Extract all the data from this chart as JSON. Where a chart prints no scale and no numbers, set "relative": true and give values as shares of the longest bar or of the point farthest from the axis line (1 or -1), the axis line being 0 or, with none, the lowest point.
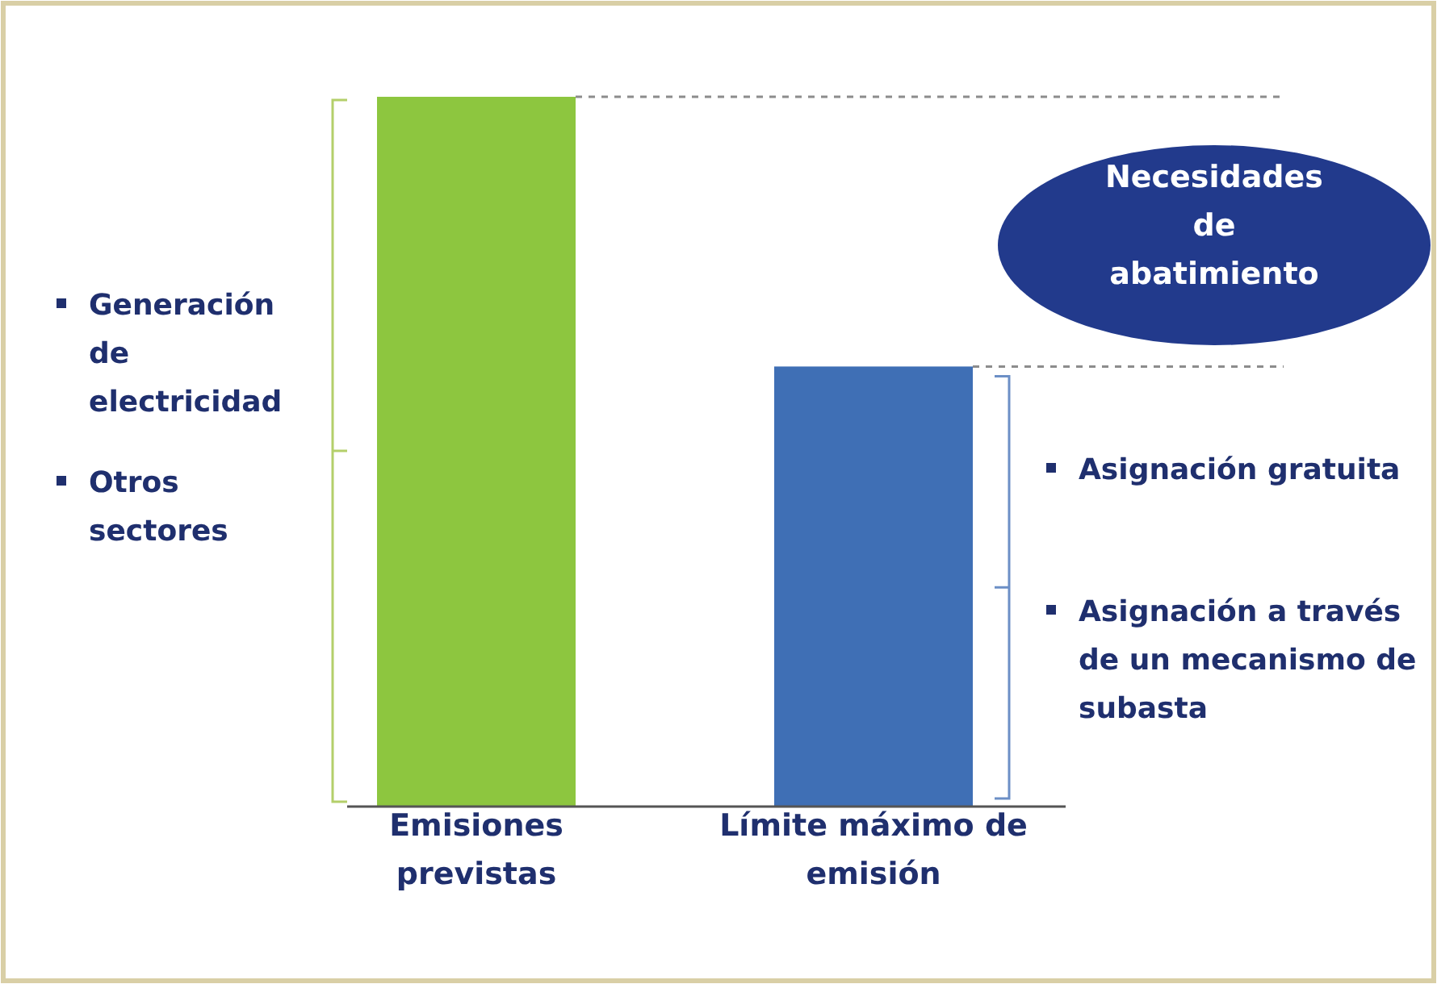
{
  "chart_data": {
    "type": "bar",
    "relative": true,
    "categories": [
      "Emisiones previstas",
      "Límite máximo de emisión"
    ],
    "values": [
      1,
      0.62
    ],
    "colors": [
      "#8dc63f",
      "#3f6fb5"
    ],
    "ref_lines": [
      {
        "axis": "y",
        "value": 1,
        "line_style": "dashed",
        "color": "#8c8c8c"
      },
      {
        "axis": "y",
        "value": 0.62,
        "line_style": "dashed",
        "color": "#8c8c8c"
      }
    ],
    "annotations": [
      "Generación de electricidad",
      "Otros sectores",
      "Asignación gratuita",
      "Asignación a través de un mecanismo de subasta",
      "Necesidades de abatimiento"
    ]
  }
}
